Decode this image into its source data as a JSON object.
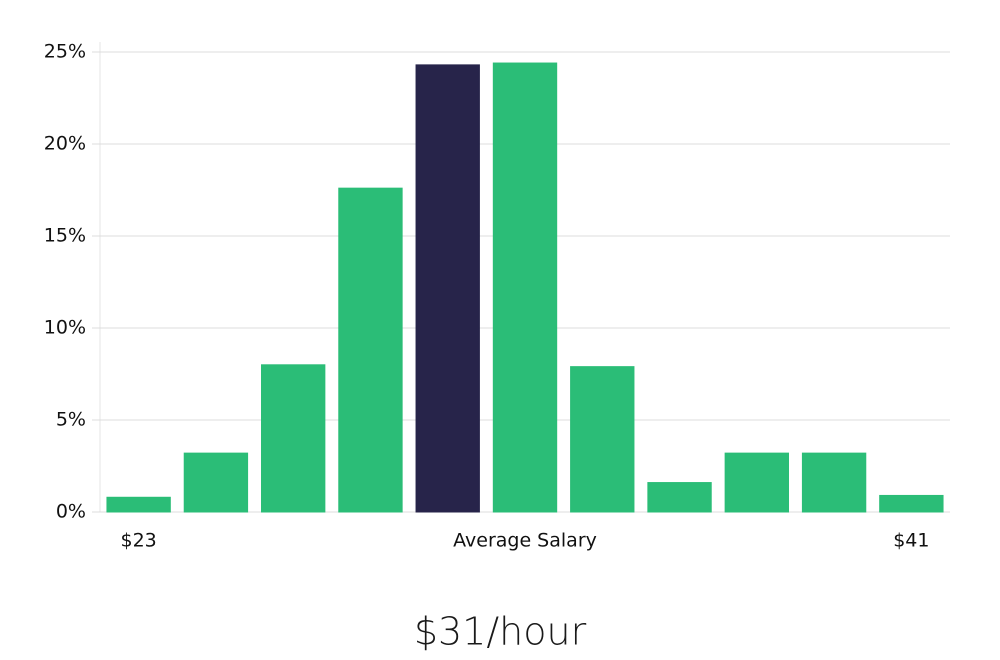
{
  "chart_data": {
    "type": "bar",
    "categories": [
      "$23",
      null,
      null,
      null,
      null,
      null,
      null,
      null,
      null,
      null,
      "$41"
    ],
    "values": [
      0.8,
      3.2,
      8.0,
      17.6,
      24.3,
      24.4,
      7.9,
      1.6,
      3.2,
      3.2,
      0.9
    ],
    "colors": [
      "#2bbd77",
      "#2bbd77",
      "#2bbd77",
      "#2bbd77",
      "#27244a",
      "#2bbd77",
      "#2bbd77",
      "#2bbd77",
      "#2bbd77",
      "#2bbd77",
      "#2bbd77"
    ],
    "x_label": "Average Salary",
    "footer": "$31/hour",
    "ylim": [
      0,
      25
    ],
    "yticks": [
      {
        "value": 0,
        "label": "0%"
      },
      {
        "value": 5,
        "label": "5%"
      },
      {
        "value": 10,
        "label": "10%"
      },
      {
        "value": 15,
        "label": "15%"
      },
      {
        "value": 20,
        "label": "20%"
      },
      {
        "value": 25,
        "label": "25%"
      }
    ],
    "grid": true
  }
}
